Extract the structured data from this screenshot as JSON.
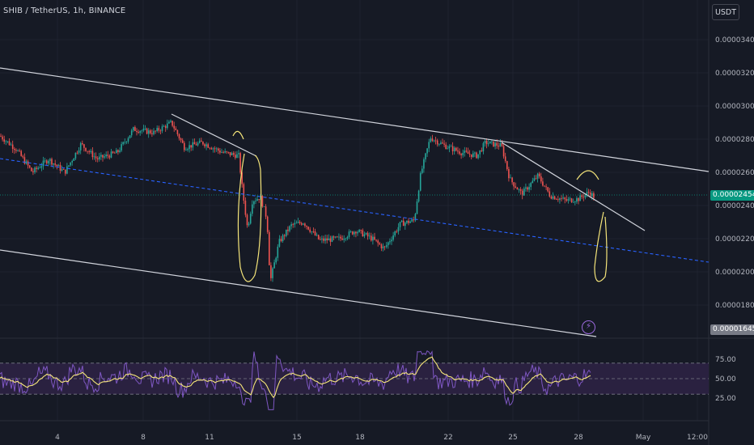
{
  "header": {
    "symbol": "SHIB / TetherUS, 1h, BINANCE",
    "currency": "USDT"
  },
  "price_axis": {
    "labels": [
      "0.00003400",
      "0.00003200",
      "0.00003000",
      "0.00002800",
      "0.00002600",
      "0.00002400",
      "0.00002200",
      "0.00002000",
      "0.00001800"
    ],
    "current_price": "0.00002454",
    "marker_price": "0.00001645"
  },
  "rsi_axis": {
    "labels": [
      "75.00",
      "50.00",
      "25.00"
    ]
  },
  "time_axis": {
    "labels": [
      "4",
      "8",
      "11",
      "15",
      "18",
      "22",
      "25",
      "28",
      "May",
      "12:00"
    ]
  },
  "colors": {
    "background": "#161a25",
    "up": "#26a69a",
    "down": "#ef5350",
    "rsi_line": "#7e57c2",
    "rsi_ma": "#f5e57a",
    "rsi_band": "#2a2140",
    "trend_line": "#d1d4dc",
    "mid_line": "#2962ff",
    "annotation": "#f5e57a",
    "price_tag": "#089981"
  },
  "icons": {
    "alert": "lightning-icon"
  }
}
